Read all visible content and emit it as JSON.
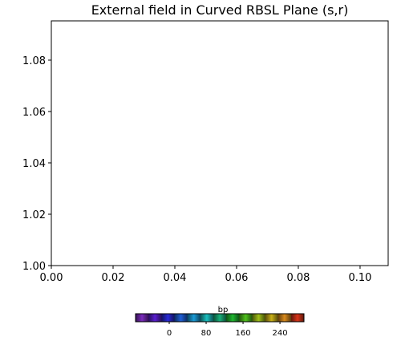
{
  "chart_data": {
    "type": "line",
    "title": "External field in Curved RBSL Plane (s,r)",
    "xlim": [
      0,
      0.1091
    ],
    "ylim": [
      1.0,
      1.0953
    ],
    "xticks": [
      {
        "value": 0,
        "label": "0.00"
      },
      {
        "value": 0.02,
        "label": "0.02"
      },
      {
        "value": 0.04,
        "label": "0.04"
      },
      {
        "value": 0.06,
        "label": "0.06"
      },
      {
        "value": 0.08,
        "label": "0.08"
      },
      {
        "value": 0.1,
        "label": "0.10"
      }
    ],
    "yticks": [
      {
        "value": 1.0,
        "label": "1.00"
      },
      {
        "value": 1.02,
        "label": "1.02"
      },
      {
        "value": 1.04,
        "label": "1.04"
      },
      {
        "value": 1.06,
        "label": "1.06"
      },
      {
        "value": 1.08,
        "label": "1.08"
      }
    ],
    "series": [],
    "colorbar": {
      "label": "bp",
      "lim": [
        -73,
        292
      ],
      "ticks": [
        0,
        80,
        160,
        240
      ]
    }
  }
}
